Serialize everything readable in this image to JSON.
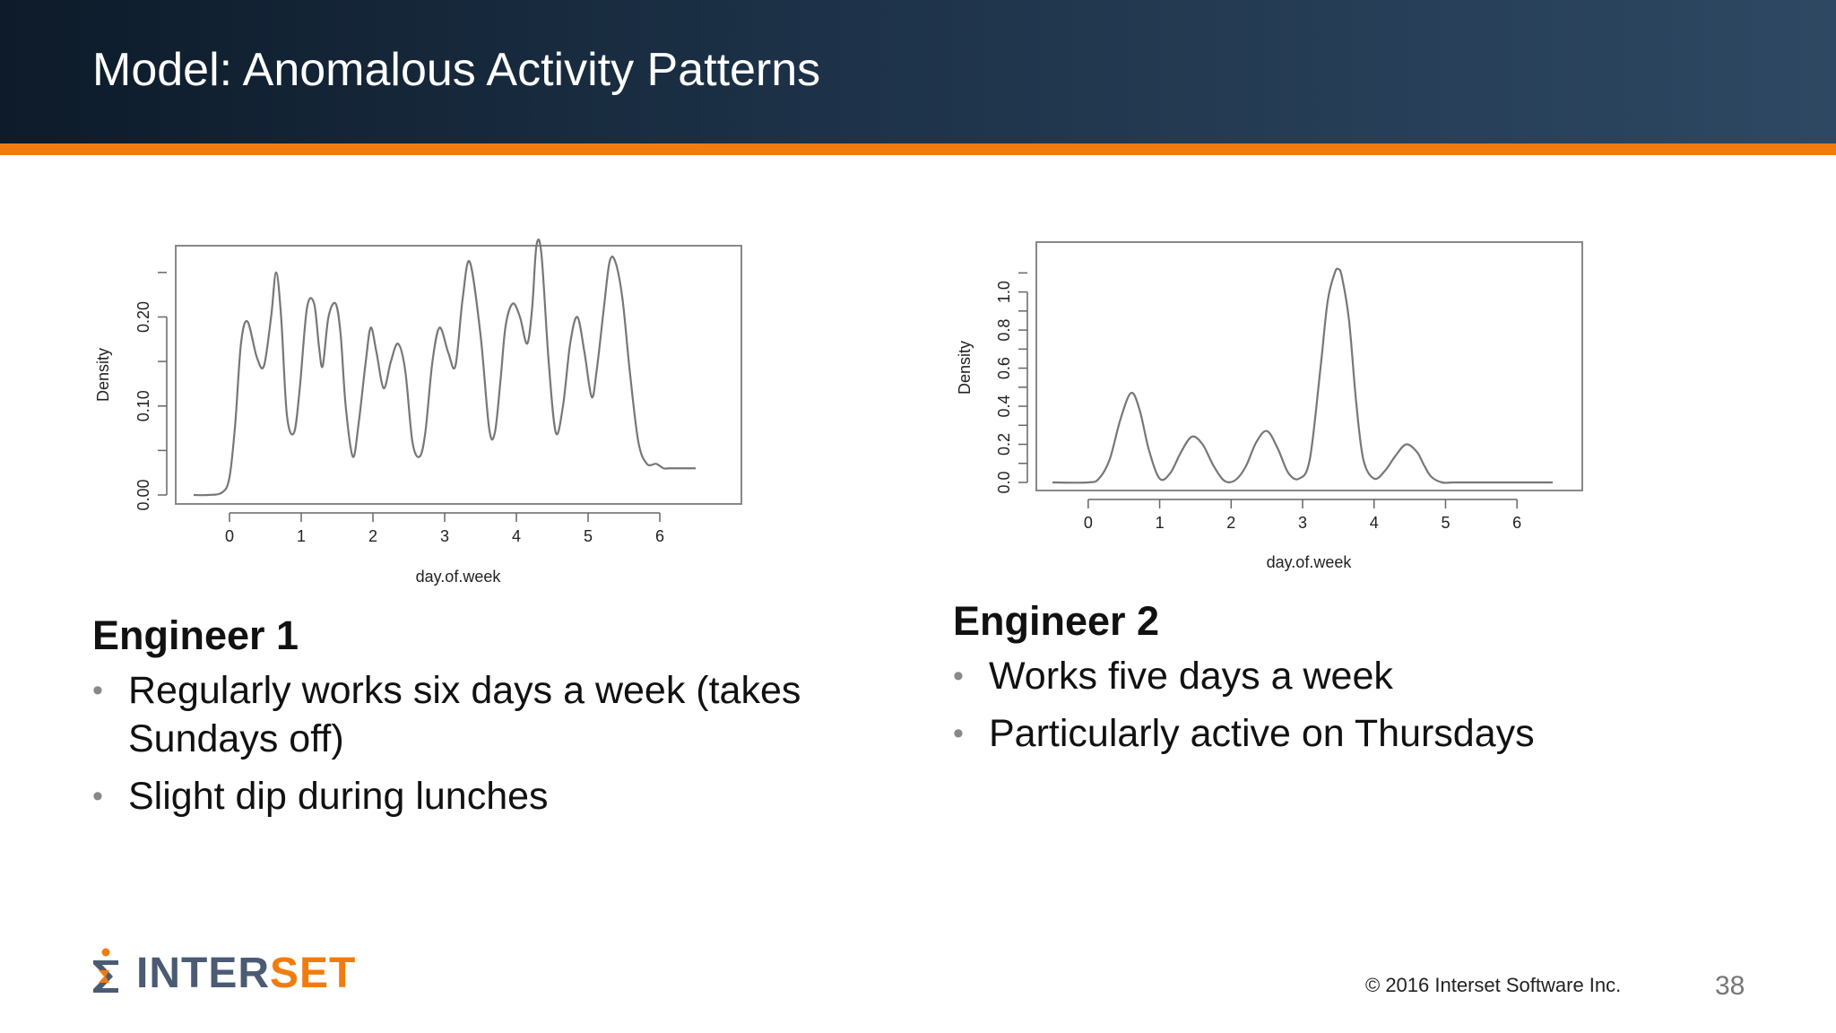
{
  "header": {
    "title": "Model: Anomalous Activity Patterns"
  },
  "accent_colors": {
    "header_dark": "#0d1b2a",
    "header_light": "#2e4863",
    "orange": "#f07c0f"
  },
  "chart_data": [
    {
      "type": "line",
      "xlabel": "day.of.week",
      "ylabel": "Density",
      "x_ticks": [
        "0",
        "1",
        "2",
        "3",
        "4",
        "5",
        "6"
      ],
      "y_ticks": [
        "0.00",
        "0.10",
        "0.20"
      ],
      "xlim": [
        -0.5,
        6.6
      ],
      "ylim": [
        0.0,
        0.27
      ],
      "x": [
        -0.5,
        -0.3,
        -0.1,
        0.0,
        0.08,
        0.16,
        0.25,
        0.38,
        0.48,
        0.58,
        0.65,
        0.72,
        0.8,
        0.9,
        0.98,
        1.08,
        1.18,
        1.25,
        1.3,
        1.38,
        1.48,
        1.55,
        1.62,
        1.72,
        1.8,
        1.9,
        1.97,
        2.05,
        2.15,
        2.25,
        2.35,
        2.45,
        2.55,
        2.65,
        2.73,
        2.83,
        2.93,
        3.05,
        3.15,
        3.25,
        3.35,
        3.5,
        3.62,
        3.7,
        3.78,
        3.85,
        3.95,
        4.05,
        4.15,
        4.22,
        4.28,
        4.35,
        4.45,
        4.55,
        4.65,
        4.75,
        4.85,
        4.95,
        5.05,
        5.12,
        5.22,
        5.3,
        5.38,
        5.48,
        5.58,
        5.7,
        5.82,
        5.95,
        6.05,
        6.13,
        6.2,
        6.3,
        6.45,
        6.5
      ],
      "y": [
        0.0,
        0.0,
        0.003,
        0.02,
        0.08,
        0.17,
        0.195,
        0.155,
        0.145,
        0.2,
        0.25,
        0.2,
        0.09,
        0.07,
        0.12,
        0.21,
        0.215,
        0.165,
        0.145,
        0.2,
        0.215,
        0.18,
        0.1,
        0.043,
        0.08,
        0.15,
        0.188,
        0.16,
        0.12,
        0.15,
        0.17,
        0.14,
        0.06,
        0.043,
        0.07,
        0.15,
        0.188,
        0.16,
        0.145,
        0.22,
        0.262,
        0.18,
        0.075,
        0.07,
        0.13,
        0.19,
        0.215,
        0.2,
        0.17,
        0.21,
        0.28,
        0.27,
        0.15,
        0.07,
        0.1,
        0.17,
        0.2,
        0.16,
        0.11,
        0.14,
        0.21,
        0.262,
        0.262,
        0.22,
        0.14,
        0.06,
        0.035,
        0.035,
        0.03,
        0.03,
        0.03,
        0.03,
        0.03,
        0.03
      ]
    },
    {
      "type": "line",
      "xlabel": "day.of.week",
      "ylabel": "Density",
      "x_ticks": [
        "0",
        "1",
        "2",
        "3",
        "4",
        "5",
        "6"
      ],
      "y_ticks": [
        "0.0",
        "0.2",
        "0.4",
        "0.6",
        "0.8",
        "1.0"
      ],
      "xlim": [
        -0.5,
        6.6
      ],
      "ylim": [
        0.0,
        1.13
      ],
      "x": [
        -0.5,
        0.0,
        0.15,
        0.3,
        0.45,
        0.6,
        0.72,
        0.85,
        1.0,
        1.15,
        1.3,
        1.45,
        1.6,
        1.75,
        1.9,
        2.05,
        2.2,
        2.35,
        2.5,
        2.65,
        2.8,
        2.95,
        3.1,
        3.25,
        3.35,
        3.45,
        3.5,
        3.55,
        3.65,
        3.75,
        3.85,
        4.0,
        4.15,
        4.3,
        4.45,
        4.6,
        4.7,
        4.8,
        4.95,
        5.1,
        5.3,
        5.6,
        6.0,
        6.5
      ],
      "y": [
        0.0,
        0.0,
        0.02,
        0.12,
        0.33,
        0.47,
        0.38,
        0.17,
        0.02,
        0.05,
        0.16,
        0.24,
        0.2,
        0.09,
        0.01,
        0.01,
        0.08,
        0.21,
        0.27,
        0.18,
        0.05,
        0.02,
        0.12,
        0.6,
        0.95,
        1.1,
        1.12,
        1.08,
        0.85,
        0.42,
        0.12,
        0.02,
        0.06,
        0.14,
        0.2,
        0.16,
        0.09,
        0.03,
        0.0,
        0.0,
        0.0,
        0.0,
        0.0,
        0.0
      ]
    }
  ],
  "engineer1": {
    "heading": "Engineer 1",
    "bullets": [
      "Regularly works six days a week (takes Sundays off)",
      "Slight dip during lunches"
    ]
  },
  "engineer2": {
    "heading": "Engineer 2",
    "bullets": [
      "Works five days a week",
      "Particularly active on Thursdays"
    ]
  },
  "footer": {
    "logo_inter": "INTER",
    "logo_set": "SET",
    "copyright": "© 2016  Interset  Software  Inc.",
    "page_number": "38"
  }
}
